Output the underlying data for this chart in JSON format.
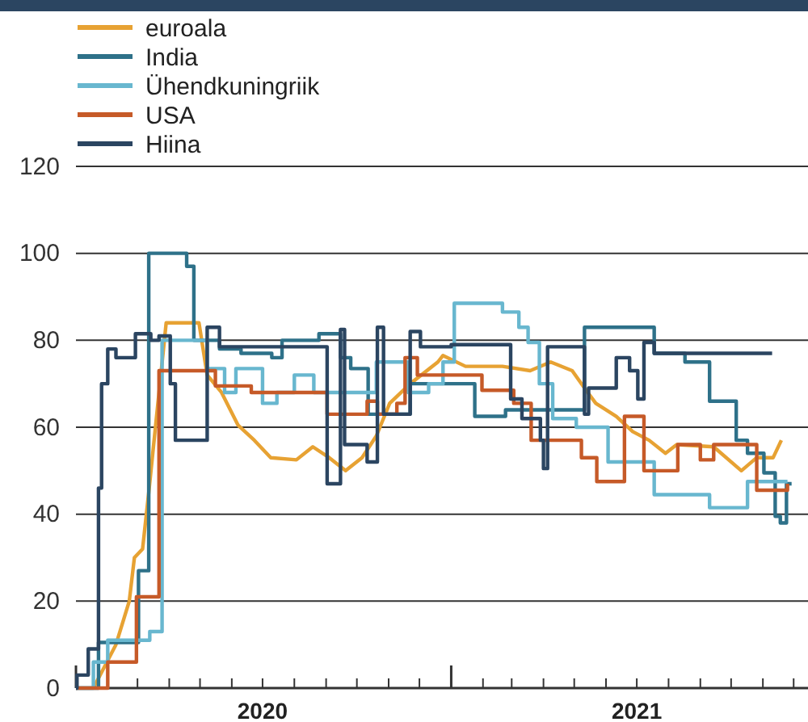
{
  "chart_data": {
    "type": "step",
    "legend": "top left",
    "grid": "y",
    "xlim": [
      "2020-01-01",
      "2021-12-15"
    ],
    "xticks": [
      {
        "value": "2020-01-01",
        "label": null
      },
      {
        "value": "2020-02-01",
        "label": null
      },
      {
        "value": "2020-03-01",
        "label": null
      },
      {
        "value": "2020-04-01",
        "label": null
      },
      {
        "value": "2020-05-01",
        "label": null
      },
      {
        "value": "2020-06-01",
        "label": null
      },
      {
        "value": "2020-07-01",
        "label": "2020"
      },
      {
        "value": "2020-08-01",
        "label": null
      },
      {
        "value": "2020-09-01",
        "label": null
      },
      {
        "value": "2020-10-01",
        "label": null
      },
      {
        "value": "2020-11-01",
        "label": null
      },
      {
        "value": "2020-12-01",
        "label": null
      },
      {
        "value": "2021-01-01",
        "label": null
      },
      {
        "value": "2021-02-01",
        "label": null
      },
      {
        "value": "2021-03-01",
        "label": null
      },
      {
        "value": "2021-04-01",
        "label": null
      },
      {
        "value": "2021-05-01",
        "label": null
      },
      {
        "value": "2021-06-01",
        "label": null
      },
      {
        "value": "2021-07-01",
        "label": "2021"
      },
      {
        "value": "2021-08-01",
        "label": null
      },
      {
        "value": "2021-09-01",
        "label": null
      },
      {
        "value": "2021-10-01",
        "label": null
      },
      {
        "value": "2021-11-01",
        "label": null
      },
      {
        "value": "2021-12-01",
        "label": null
      }
    ],
    "ylim": [
      0,
      120
    ],
    "yticks": [
      0,
      20,
      40,
      60,
      80,
      100,
      120
    ],
    "series": [
      {
        "name": "euroala",
        "color": "#e7a233",
        "type": "line",
        "x": [
          "2020-01-18",
          "2020-02-09",
          "2020-02-22",
          "2020-02-27",
          "2020-03-06",
          "2020-03-12",
          "2020-03-29",
          "2020-04-30",
          "2020-05-08",
          "2020-05-22",
          "2020-06-07",
          "2020-06-23",
          "2020-07-09",
          "2020-08-03",
          "2020-08-19",
          "2020-09-04",
          "2020-09-20",
          "2020-10-06",
          "2020-10-20",
          "2020-11-02",
          "2020-11-22",
          "2020-12-19",
          "2020-12-24",
          "2021-01-15",
          "2021-02-20",
          "2021-03-19",
          "2021-04-08",
          "2021-04-29",
          "2021-05-11",
          "2021-05-22",
          "2021-06-11",
          "2021-06-27",
          "2021-07-13",
          "2021-07-29",
          "2021-08-09",
          "2021-09-14",
          "2021-10-11",
          "2021-10-26",
          "2021-11-11",
          "2021-11-19"
        ],
        "values": [
          0,
          10,
          20,
          30,
          32,
          45,
          84,
          84,
          72,
          68,
          60.5,
          57,
          53,
          52.5,
          55.5,
          53,
          50,
          53,
          58,
          65.5,
          70,
          75,
          76.5,
          74,
          74,
          73,
          75,
          73,
          69,
          65.5,
          62.5,
          59,
          57,
          54,
          56,
          55.5,
          50,
          53,
          53,
          57
        ]
      },
      {
        "name": "India",
        "color": "#2e7189",
        "x": [
          "2020-01-01",
          "2020-01-23",
          "2020-03-02",
          "2020-03-12",
          "2020-04-18",
          "2020-04-25",
          "2020-05-20",
          "2020-06-10",
          "2020-07-10",
          "2020-07-20",
          "2020-08-25",
          "2020-09-15",
          "2020-09-25",
          "2020-10-12",
          "2020-11-22",
          "2021-01-24",
          "2021-02-23",
          "2021-05-11",
          "2021-07-18",
          "2021-08-17",
          "2021-09-10",
          "2021-10-06",
          "2021-10-17",
          "2021-11-02",
          "2021-11-13",
          "2021-11-18",
          "2021-11-24",
          "2021-11-29"
        ],
        "values": [
          0,
          10.5,
          27,
          100,
          97,
          80,
          78,
          77,
          76,
          80,
          81.5,
          76,
          73.5,
          63,
          70,
          62.5,
          64,
          83,
          77,
          75,
          66,
          57,
          54,
          49.5,
          39.5,
          38,
          47,
          47
        ]
      },
      {
        "name": "Ühendkuningriik",
        "color": "#68b7cf",
        "x": [
          "2020-01-01",
          "2020-01-18",
          "2020-02-01",
          "2020-03-13",
          "2020-03-25",
          "2020-05-08",
          "2020-05-25",
          "2020-06-05",
          "2020-07-01",
          "2020-07-15",
          "2020-08-01",
          "2020-08-20",
          "2020-10-20",
          "2020-11-20",
          "2020-12-10",
          "2020-12-24",
          "2021-01-04",
          "2021-02-20",
          "2021-03-08",
          "2021-03-17",
          "2021-03-28",
          "2021-04-10",
          "2021-05-03",
          "2021-06-03",
          "2021-07-18",
          "2021-09-10",
          "2021-10-17",
          "2021-11-25"
        ],
        "values": [
          0,
          6,
          11,
          13,
          80,
          73.5,
          68,
          73.5,
          65.5,
          68,
          72,
          68,
          75,
          68,
          70,
          75,
          88.5,
          86.5,
          83,
          79.5,
          70,
          62,
          60,
          52,
          44.5,
          41.5,
          47.5,
          47.5
        ]
      },
      {
        "name": "USA",
        "color": "#c65a28",
        "x": [
          "2020-01-01",
          "2020-02-01",
          "2020-02-29",
          "2020-03-22",
          "2020-05-16",
          "2020-06-20",
          "2020-09-02",
          "2020-10-11",
          "2020-10-21",
          "2020-11-09",
          "2020-11-17",
          "2020-11-29",
          "2021-01-31",
          "2021-03-03",
          "2021-03-20",
          "2021-05-08",
          "2021-05-23",
          "2021-06-19",
          "2021-07-08",
          "2021-08-10",
          "2021-09-01",
          "2021-09-14",
          "2021-10-26",
          "2021-11-25"
        ],
        "values": [
          0,
          6,
          21,
          73,
          69.5,
          68,
          63,
          66,
          63,
          65.5,
          76,
          72,
          68.5,
          65.5,
          57,
          53,
          47.5,
          62.5,
          50,
          56,
          52.5,
          56,
          45.5,
          47
        ]
      },
      {
        "name": "Hiina",
        "color": "#2b4561",
        "x": [
          "2020-01-01",
          "2020-01-02",
          "2020-01-13",
          "2020-01-23",
          "2020-01-26",
          "2020-02-01",
          "2020-02-09",
          "2020-02-28",
          "2020-03-14",
          "2020-03-22",
          "2020-04-02",
          "2020-04-07",
          "2020-05-08",
          "2020-05-20",
          "2020-09-02",
          "2020-09-15",
          "2020-09-19",
          "2020-10-11",
          "2020-10-21",
          "2020-10-27",
          "2020-11-22",
          "2020-12-02",
          "2021-01-01",
          "2021-02-28",
          "2021-03-11",
          "2021-03-29",
          "2021-04-01",
          "2021-04-05",
          "2021-05-11",
          "2021-05-15",
          "2021-06-11",
          "2021-06-24",
          "2021-07-02",
          "2021-07-08",
          "2021-07-18",
          "2021-11-10"
        ],
        "values": [
          0,
          3,
          9,
          46,
          70,
          78,
          76,
          81.5,
          80,
          81,
          70,
          57,
          83,
          78.5,
          47,
          82.5,
          56,
          52,
          83,
          63,
          82,
          78.5,
          79,
          66.5,
          62,
          57,
          50.5,
          78.5,
          63,
          69,
          76,
          73,
          66.5,
          79.5,
          77,
          77
        ]
      }
    ]
  }
}
